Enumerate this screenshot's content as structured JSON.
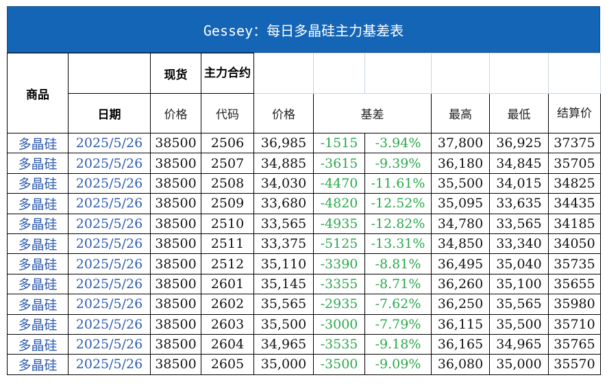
{
  "title": "Gessey：每日多晶硅主力基差表",
  "headers": {
    "product": "商品",
    "spot": "现货",
    "main_contract": "主力合约",
    "date": "日期",
    "spot_price": "价格",
    "code": "代码",
    "price": "价格",
    "basis": "基差",
    "high": "最高",
    "low": "最低",
    "settle": "结算价"
  },
  "rows": [
    {
      "product": "多晶硅",
      "date": "2025/5/26",
      "spot": "38500",
      "code": "2506",
      "price": "36,985",
      "basis": "-1515",
      "basis_pct": "-3.94%",
      "high": "37,800",
      "low": "36,925",
      "settle": "37375"
    },
    {
      "product": "多晶硅",
      "date": "2025/5/26",
      "spot": "38500",
      "code": "2507",
      "price": "34,885",
      "basis": "-3615",
      "basis_pct": "-9.39%",
      "high": "36,180",
      "low": "34,845",
      "settle": "35705"
    },
    {
      "product": "多晶硅",
      "date": "2025/5/26",
      "spot": "38500",
      "code": "2508",
      "price": "34,030",
      "basis": "-4470",
      "basis_pct": "-11.61%",
      "high": "35,500",
      "low": "34,015",
      "settle": "34825"
    },
    {
      "product": "多晶硅",
      "date": "2025/5/26",
      "spot": "38500",
      "code": "2509",
      "price": "33,680",
      "basis": "-4820",
      "basis_pct": "-12.52%",
      "high": "35,095",
      "low": "33,635",
      "settle": "34435"
    },
    {
      "product": "多晶硅",
      "date": "2025/5/26",
      "spot": "38500",
      "code": "2510",
      "price": "33,565",
      "basis": "-4935",
      "basis_pct": "-12.82%",
      "high": "34,780",
      "low": "33,565",
      "settle": "34185"
    },
    {
      "product": "多晶硅",
      "date": "2025/5/26",
      "spot": "38500",
      "code": "2511",
      "price": "33,375",
      "basis": "-5125",
      "basis_pct": "-13.31%",
      "high": "34,850",
      "low": "33,340",
      "settle": "34050"
    },
    {
      "product": "多晶硅",
      "date": "2025/5/26",
      "spot": "38500",
      "code": "2512",
      "price": "35,110",
      "basis": "-3390",
      "basis_pct": "-8.81%",
      "high": "36,495",
      "low": "35,040",
      "settle": "35735"
    },
    {
      "product": "多晶硅",
      "date": "2025/5/26",
      "spot": "38500",
      "code": "2601",
      "price": "35,145",
      "basis": "-3355",
      "basis_pct": "-8.71%",
      "high": "36,260",
      "low": "35,100",
      "settle": "35655"
    },
    {
      "product": "多晶硅",
      "date": "2025/5/26",
      "spot": "38500",
      "code": "2602",
      "price": "35,565",
      "basis": "-2935",
      "basis_pct": "-7.62%",
      "high": "36,250",
      "low": "35,565",
      "settle": "35980"
    },
    {
      "product": "多晶硅",
      "date": "2025/5/26",
      "spot": "38500",
      "code": "2603",
      "price": "35,500",
      "basis": "-3000",
      "basis_pct": "-7.79%",
      "high": "36,115",
      "low": "35,500",
      "settle": "35710"
    },
    {
      "product": "多晶硅",
      "date": "2025/5/26",
      "spot": "38500",
      "code": "2604",
      "price": "34,965",
      "basis": "-3535",
      "basis_pct": "-9.18%",
      "high": "36,165",
      "low": "34,965",
      "settle": "35765"
    },
    {
      "product": "多晶硅",
      "date": "2025/5/26",
      "spot": "38500",
      "code": "2605",
      "price": "35,000",
      "basis": "-3500",
      "basis_pct": "-9.09%",
      "high": "36,080",
      "low": "35,000",
      "settle": "35570"
    }
  ],
  "colors": {
    "title_bg": "#1565b6",
    "title_text": "#ffffff",
    "blue_text": "#2d59b0",
    "green_text": "#2aa84a"
  }
}
